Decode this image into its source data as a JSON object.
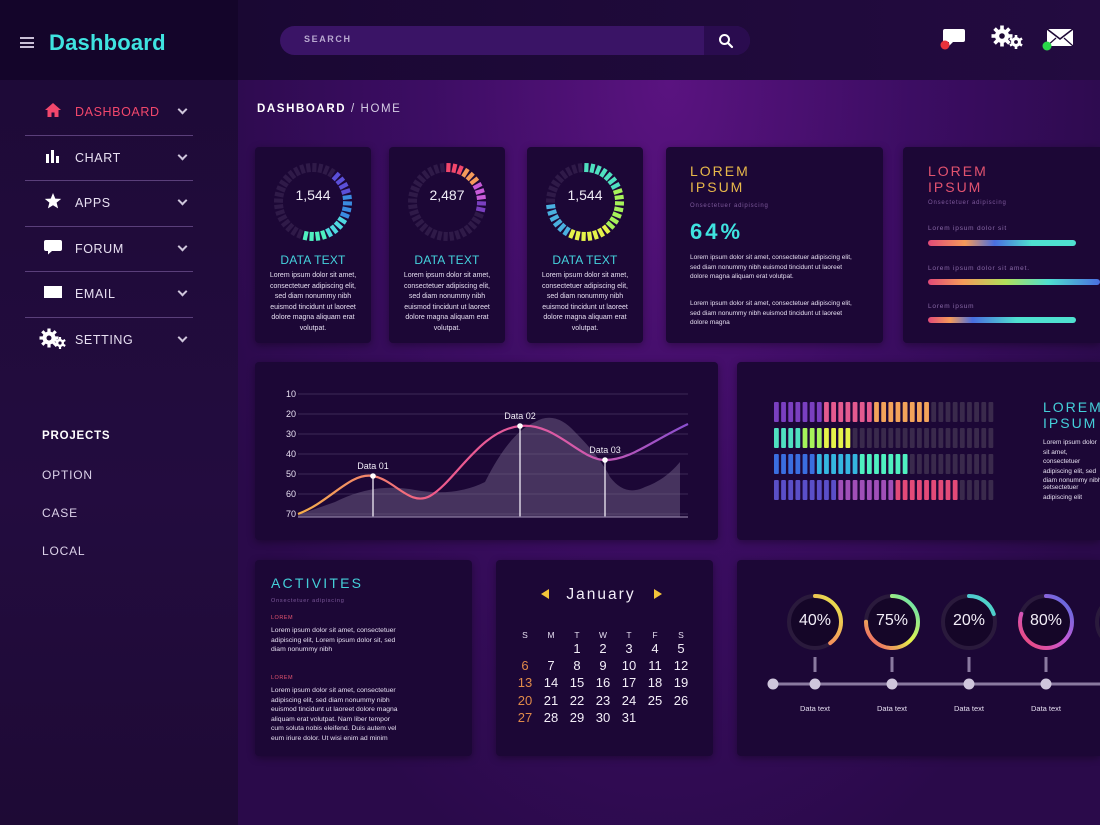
{
  "app": {
    "title": "Dashboard"
  },
  "search": {
    "placeholder": "SEARCH"
  },
  "colors": {
    "accent_cyan": "#3fe3e0",
    "active_red": "#f2476c",
    "gold": "#e8b84a",
    "notify_red": "#e8323c",
    "online_green": "#29d84a"
  },
  "sidebar": {
    "items": [
      {
        "label": "DASHBOARD",
        "icon": "home-icon"
      },
      {
        "label": "CHART",
        "icon": "bar-chart-icon"
      },
      {
        "label": "APPS",
        "icon": "star-icon"
      },
      {
        "label": "FORUM",
        "icon": "speech-bubble-icon"
      },
      {
        "label": "EMAIL",
        "icon": "envelope-icon"
      },
      {
        "label": "SETTING",
        "icon": "gear-icon"
      }
    ],
    "projects_title": "PROJECTS",
    "projects": [
      "OPTION",
      "CASE",
      "LOCAL"
    ]
  },
  "breadcrumb": {
    "current": "DASHBOARD",
    "separator": "/",
    "page": "HOME"
  },
  "stat_cards": [
    {
      "value": "1,544",
      "title": "DATA TEXT",
      "text": "Lorem ipsum dolor sit amet, consectetuer adipiscing elit, sed diam nonummy nibh euismod tincidunt ut laoreet dolore magna aliquam erat volutpat.",
      "fill": 0.45
    },
    {
      "value": "2,487",
      "title": "DATA TEXT",
      "text": "Lorem ipsum dolor sit amet, consectetuer adipiscing elit, sed diam nonummy nibh euismod tincidunt ut laoreet dolore magna aliquam erat volutpat.",
      "fill": 0.3
    },
    {
      "value": "1,544",
      "title": "DATA TEXT",
      "text": "Lorem ipsum dolor sit amet, consectetuer adipiscing elit, sed diam nonummy nibh euismod tincidunt ut laoreet dolore magna aliquam erat volutpat.",
      "fill": 0.75
    }
  ],
  "lorem_card": {
    "title": "LOREM IPSUM",
    "subtitle": "Onsectetuer adipiscing",
    "percent": "64%",
    "text1": "Lorem ipsum dolor sit amet, consectetuer adipiscing elit, sed diam nonummy nibh euismod tincidunt ut laoreet dolore magna aliquam erat volutpat.",
    "text2": "Lorem ipsum dolor sit amet, consectetuer adipiscing elit, sed diam nonummy nibh euismod tincidunt ut laoreet dolore magna"
  },
  "progress_card": {
    "title": "LOREM IPSUM",
    "subtitle": "Onsectetuer adipiscing",
    "bars": [
      {
        "label": "Lorem ipsum dolor sit",
        "value": 0.9
      },
      {
        "label": "Lorem ipsum dolor sit amet.",
        "value": 1.0
      },
      {
        "label": "Lorem ipsum",
        "value": 0.9
      }
    ]
  },
  "chart_data": {
    "type": "line",
    "yticks": [
      10,
      20,
      30,
      40,
      50,
      60,
      70
    ],
    "annotations": [
      "Data 01",
      "Data 02",
      "Data 03"
    ],
    "annotation_values": [
      50,
      16,
      43
    ],
    "grid": true
  },
  "equalizer": {
    "title": "LOREM IPSUM",
    "text1": "Lorem ipsum dolor sit amet, consectetuer adipiscing elit, sed diam nonummy nibh",
    "text2": "setsectetuer adipiscing elit",
    "rows": [
      {
        "level": 0.7,
        "colors": [
          "#7a3fc0",
          "#e45a8f",
          "#f3a35a"
        ]
      },
      {
        "level": 0.34,
        "colors": [
          "#4fe0c0",
          "#a6f25a",
          "#e5f24a"
        ]
      },
      {
        "level": 0.61,
        "colors": [
          "#3a6ee0",
          "#35b6e0",
          "#4ff0c0"
        ]
      },
      {
        "level": 0.85,
        "colors": [
          "#5a4fc8",
          "#a04fb8",
          "#e24a78"
        ]
      }
    ]
  },
  "activities": {
    "title": "ACTIVITES",
    "subtitle": "Onsectetuer adipiscing",
    "entries": [
      {
        "tag": "LOREM",
        "text": "Lorem ipsum dolor sit amet, consectetuer adipiscing elit, Lorem ipsum dolor sit, sed diam nonummy nibh"
      },
      {
        "tag": "LOREM",
        "text": "Lorem ipsum dolor sit amet, consectetuer adipiscing elit, sed diam nonummy nibh euismod tincidunt ut laoreet dolore magna aliquam erat volutpat. Nam liber tempor cum soluta nobis eleifend. Duis autem vel eum iriure dolor. Ut wisi enim ad minim veniam, quis nostrud exerci tation ullamcorper"
      }
    ]
  },
  "calendar": {
    "month": "January",
    "weekdays": [
      "S",
      "M",
      "T",
      "W",
      "T",
      "F",
      "S"
    ],
    "weeks": [
      [
        "",
        "",
        "1",
        "2",
        "3",
        "4",
        "5"
      ],
      [
        "6",
        "7",
        "8",
        "9",
        "10",
        "11",
        "12"
      ],
      [
        "13",
        "14",
        "15",
        "16",
        "17",
        "18",
        "19"
      ],
      [
        "20",
        "21",
        "22",
        "23",
        "24",
        "25",
        "26"
      ],
      [
        "27",
        "28",
        "29",
        "30",
        "31",
        "",
        ""
      ]
    ]
  },
  "timeline": {
    "items": [
      {
        "pct": "40%",
        "value": 0.4,
        "label": "Data text"
      },
      {
        "pct": "75%",
        "value": 0.75,
        "label": "Data text"
      },
      {
        "pct": "20%",
        "value": 0.2,
        "label": "Data text"
      },
      {
        "pct": "80%",
        "value": 0.8,
        "label": "Data text"
      }
    ]
  }
}
